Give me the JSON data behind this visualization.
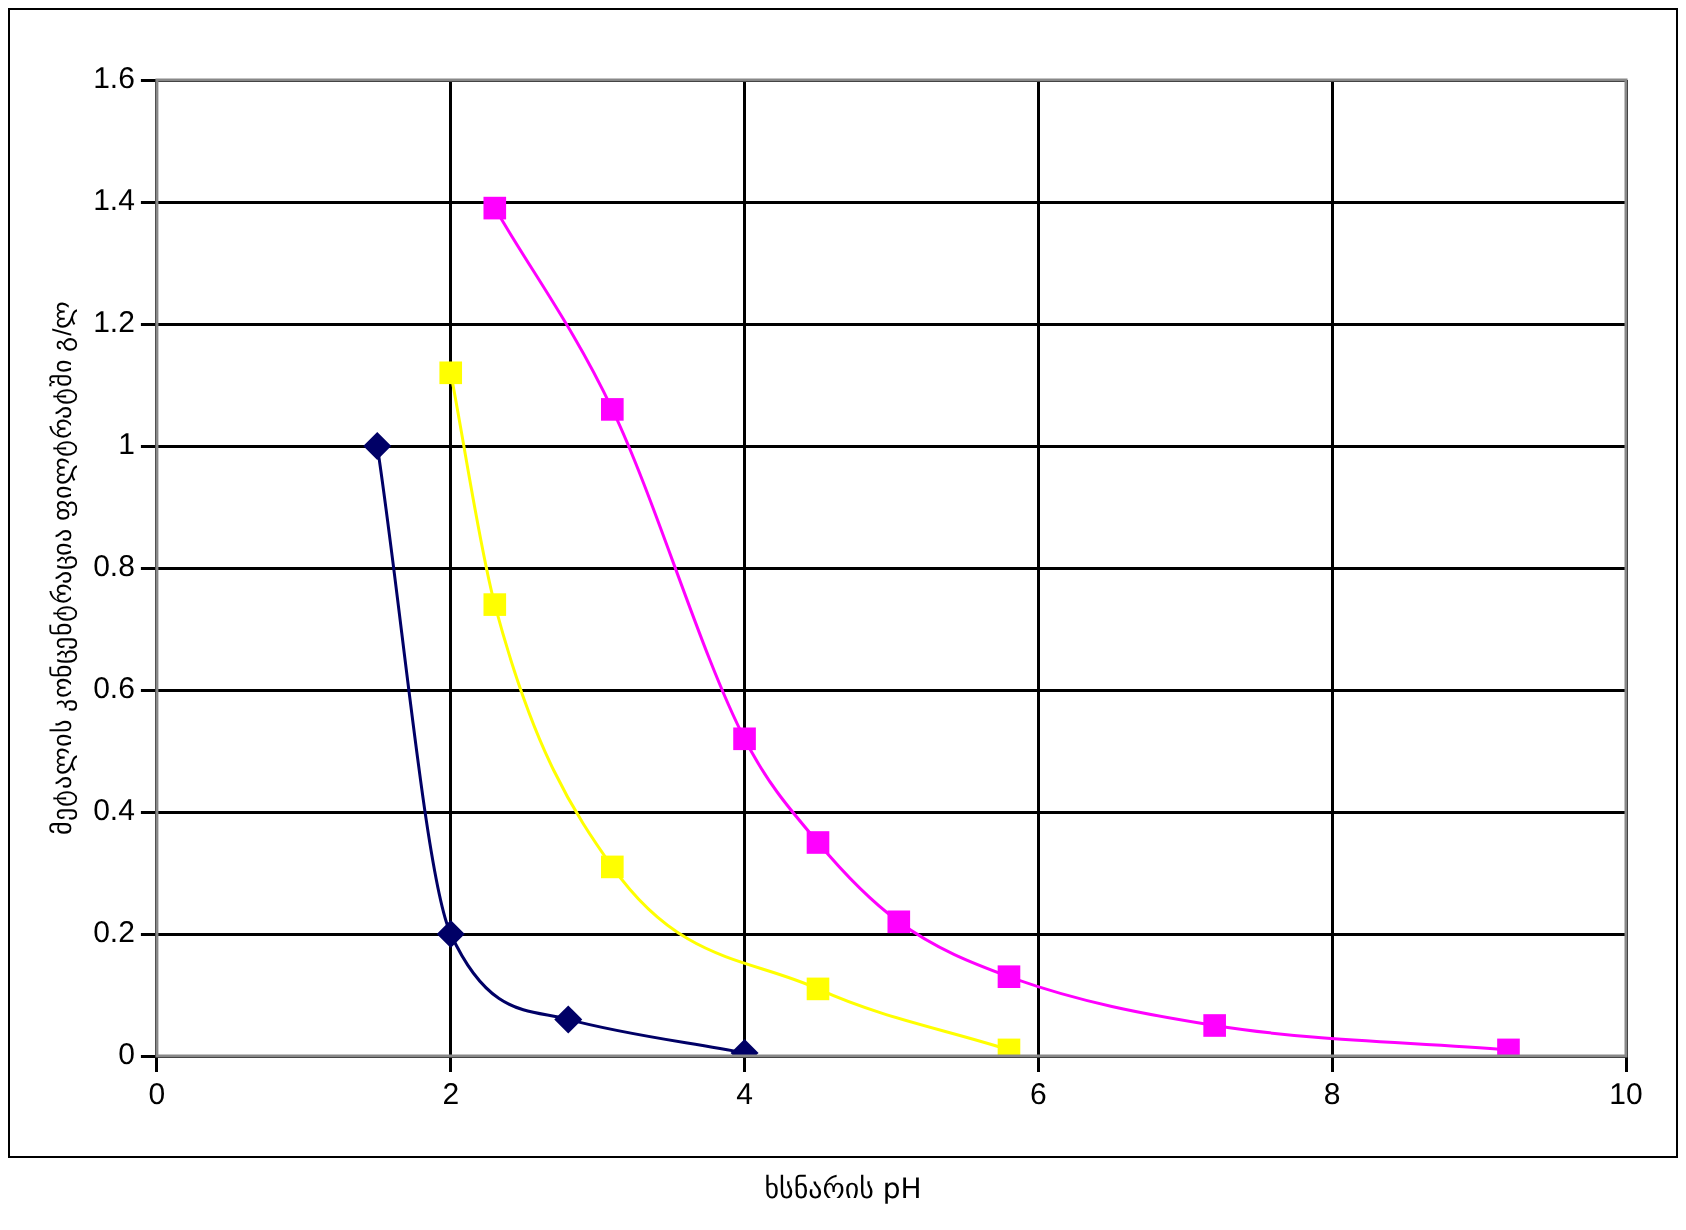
{
  "chart_data": {
    "type": "line",
    "xlabel": "ხსნარის pH",
    "ylabel": "მეტალის კონცენტრაცია ფილტრატში გ/ლ",
    "xlim": [
      0,
      10
    ],
    "xticks": [
      0,
      2,
      4,
      6,
      8,
      10
    ],
    "ylim": [
      0,
      1.6
    ],
    "yticks": [
      0,
      0.2,
      0.4,
      0.6,
      0.8,
      1,
      1.2,
      1.4,
      1.6
    ],
    "grid": true,
    "legend": false,
    "series": [
      {
        "color": "#000066",
        "marker": "diamond",
        "x": [
          1.5,
          2,
          2.8,
          4
        ],
        "values": [
          1.0,
          0.2,
          0.06,
          0.005
        ]
      },
      {
        "color": "#ffff00",
        "marker": "square",
        "x": [
          2,
          2.3,
          3.1,
          4.5,
          5.8
        ],
        "values": [
          1.12,
          0.74,
          0.31,
          0.11,
          0.01
        ]
      },
      {
        "color": "#ff00ff",
        "marker": "square",
        "x": [
          2.3,
          3.1,
          4,
          4.5,
          5.05,
          5.8,
          7.2,
          9.2
        ],
        "values": [
          1.39,
          1.06,
          0.52,
          0.35,
          0.22,
          0.13,
          0.05,
          0.01
        ]
      }
    ]
  }
}
